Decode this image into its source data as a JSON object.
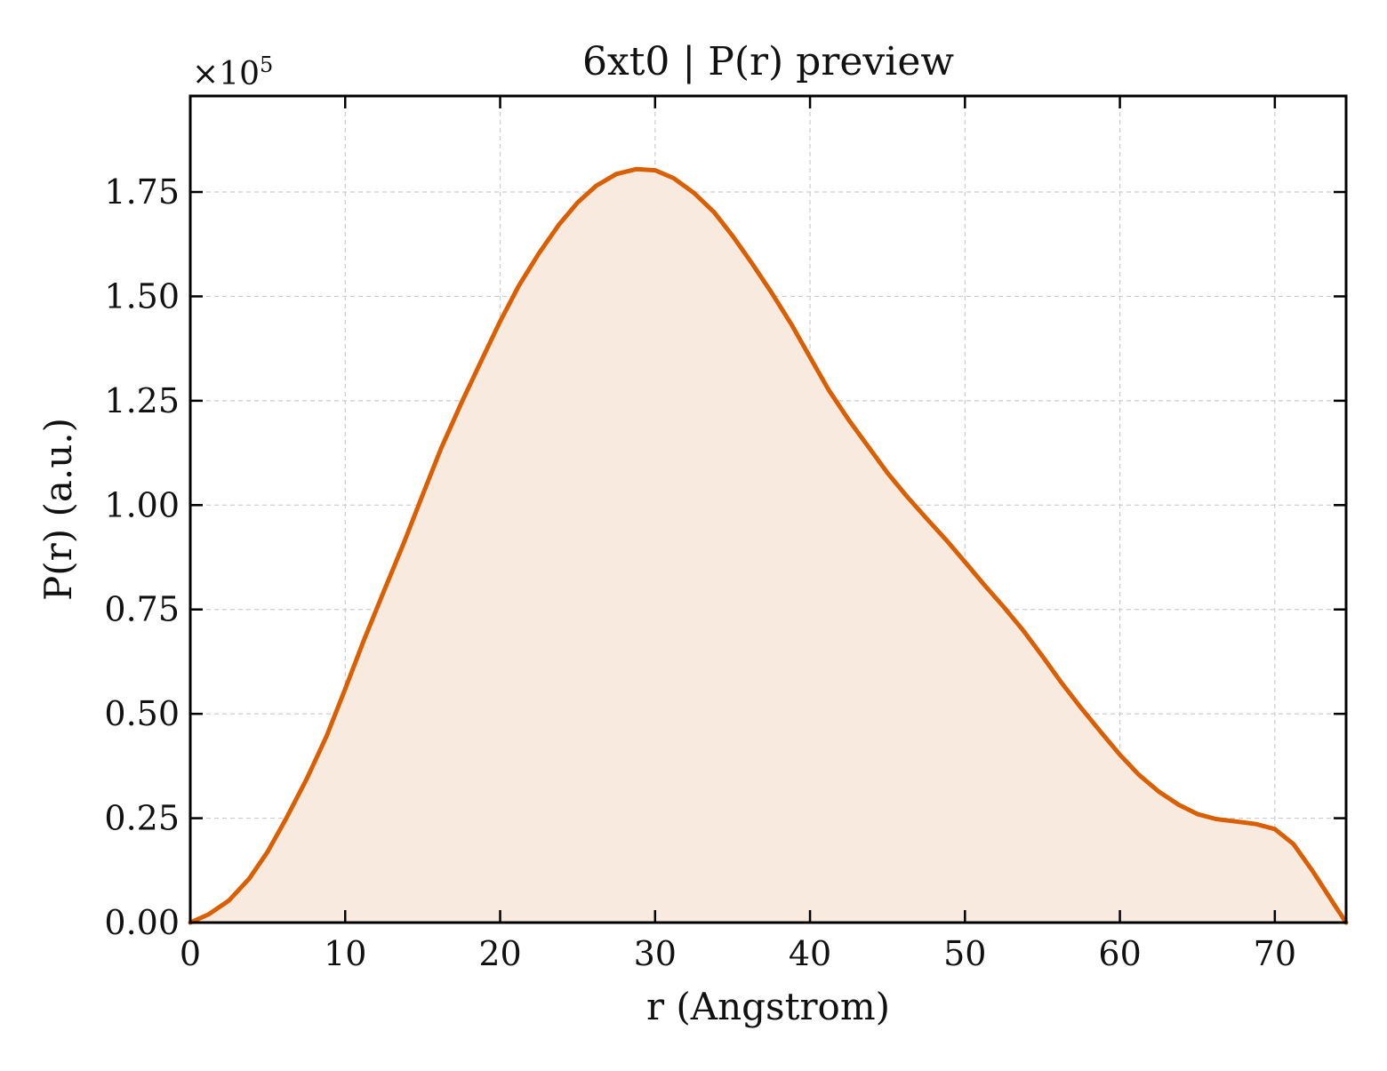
{
  "chart_data": {
    "type": "area",
    "title": "6xt0 | P(r) preview",
    "xlabel": "r (Angstrom)",
    "ylabel": "P(r) (a.u.)",
    "y_offset_text": {
      "base": "×10",
      "exponent": "5"
    },
    "xlim": [
      0,
      74.6
    ],
    "ylim": [
      0,
      1.98
    ],
    "y_scale_factor": 100000,
    "xticks": [
      0,
      10,
      20,
      30,
      40,
      50,
      60,
      70
    ],
    "yticks": [
      0,
      0.25,
      0.5,
      0.75,
      1.0,
      1.25,
      1.5,
      1.75
    ],
    "ytick_labels": [
      "0.00",
      "0.25",
      "0.50",
      "0.75",
      "1.00",
      "1.25",
      "1.50",
      "1.75"
    ],
    "grid": true,
    "legend": "none",
    "line_color": "#d95f02",
    "fill_color": "#f9eae0",
    "series": [
      {
        "x": [
          0,
          1.2,
          2.5,
          3.8,
          5.0,
          6.2,
          7.5,
          8.8,
          10.0,
          11.2,
          12.5,
          13.8,
          15.0,
          16.2,
          17.5,
          18.8,
          20.0,
          21.2,
          22.5,
          23.8,
          25.0,
          26.2,
          27.5,
          28.8,
          30.0,
          31.2,
          32.5,
          33.8,
          35.0,
          36.2,
          37.5,
          38.8,
          40.0,
          41.2,
          42.5,
          43.8,
          45.0,
          46.2,
          47.5,
          48.8,
          50.0,
          51.2,
          52.5,
          53.8,
          55.0,
          56.2,
          57.5,
          58.8,
          60.0,
          61.2,
          62.5,
          63.8,
          65.0,
          66.2,
          67.5,
          68.8,
          70.0,
          71.2,
          72.5,
          73.8,
          74.6
        ],
        "values": [
          0.0,
          0.02,
          0.053,
          0.105,
          0.17,
          0.25,
          0.343,
          0.447,
          0.56,
          0.676,
          0.794,
          0.911,
          1.025,
          1.137,
          1.245,
          1.347,
          1.44,
          1.525,
          1.603,
          1.672,
          1.725,
          1.765,
          1.793,
          1.805,
          1.802,
          1.783,
          1.748,
          1.702,
          1.645,
          1.582,
          1.51,
          1.433,
          1.354,
          1.276,
          1.204,
          1.138,
          1.077,
          1.023,
          0.969,
          0.916,
          0.864,
          0.811,
          0.756,
          0.698,
          0.638,
          0.576,
          0.514,
          0.455,
          0.402,
          0.355,
          0.314,
          0.282,
          0.26,
          0.248,
          0.242,
          0.236,
          0.224,
          0.188,
          0.12,
          0.045,
          0.0
        ]
      }
    ]
  }
}
